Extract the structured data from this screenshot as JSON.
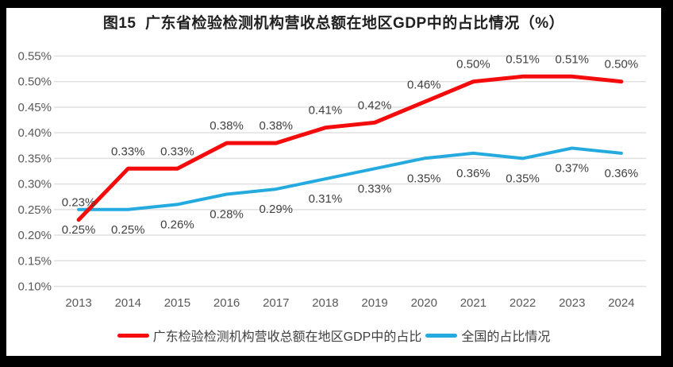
{
  "title": "图15  广东省检验检测机构营收总额在地区GDP中的占比情况（%）",
  "chart_data": {
    "type": "line",
    "title": "图15  广东省检验检测机构营收总额在地区GDP中的占比情况（%）",
    "categories": [
      "2013",
      "2014",
      "2015",
      "2016",
      "2017",
      "2018",
      "2019",
      "2020",
      "2021",
      "2022",
      "2023",
      "2024"
    ],
    "series": [
      {
        "name": "广东检验检测机构营收总额在地区GDP中的占比",
        "color": "#f40b0b",
        "values": [
          0.23,
          0.33,
          0.33,
          0.38,
          0.38,
          0.41,
          0.42,
          0.46,
          0.5,
          0.51,
          0.51,
          0.5
        ],
        "labels": [
          "0.23%",
          "0.33%",
          "0.33%",
          "0.38%",
          "0.38%",
          "0.41%",
          "0.42%",
          "0.46%",
          "0.50%",
          "0.51%",
          "0.51%",
          "0.50%"
        ],
        "label_position": "above",
        "line_width": 5
      },
      {
        "name": "全国的占比情况",
        "color": "#25aadf",
        "values": [
          0.25,
          0.25,
          0.26,
          0.28,
          0.29,
          0.31,
          0.33,
          0.35,
          0.36,
          0.35,
          0.37,
          0.36
        ],
        "labels": [
          "0.25%",
          "0.25%",
          "0.26%",
          "0.28%",
          "0.29%",
          "0.31%",
          "0.33%",
          "0.35%",
          "0.36%",
          "0.35%",
          "0.37%",
          "0.36%"
        ],
        "label_position": "below",
        "line_width": 4
      }
    ],
    "ylim": [
      0.1,
      0.55
    ],
    "yticks": [
      0.1,
      0.15,
      0.2,
      0.25,
      0.3,
      0.35,
      0.4,
      0.45,
      0.5,
      0.55
    ],
    "ytick_labels": [
      "0.10%",
      "0.15%",
      "0.20%",
      "0.25%",
      "0.30%",
      "0.35%",
      "0.40%",
      "0.45%",
      "0.50%",
      "0.55%"
    ],
    "xlabel": "",
    "ylabel": "",
    "grid": true,
    "legend_position": "bottom",
    "styles": {
      "gridline_color": "#e0e0e0",
      "tick_label_color": "#595959",
      "data_label_color": "#404040",
      "title_color": "#1f1f1f",
      "panel_background": "#ffffff",
      "frame_background": "#000000"
    }
  }
}
